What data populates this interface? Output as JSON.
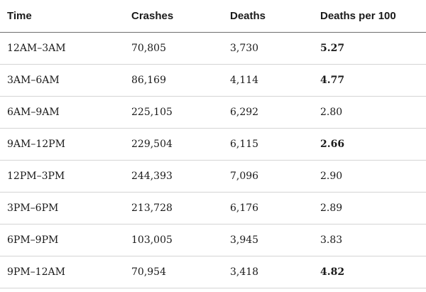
{
  "table": {
    "headers": {
      "time": "Time",
      "crashes": "Crashes",
      "deaths": "Deaths",
      "deaths_per_100": "Deaths per 100"
    },
    "rows": [
      {
        "time": "12AM–3AM",
        "crashes": "70,805",
        "deaths": "3,730",
        "rate": "5.27",
        "bold": true
      },
      {
        "time": "3AM–6AM",
        "crashes": "86,169",
        "deaths": "4,114",
        "rate": "4.77",
        "bold": true
      },
      {
        "time": "6AM–9AM",
        "crashes": "225,105",
        "deaths": "6,292",
        "rate": "2.80",
        "bold": false
      },
      {
        "time": "9AM–12PM",
        "crashes": "229,504",
        "deaths": "6,115",
        "rate": "2.66",
        "bold": true
      },
      {
        "time": "12PM–3PM",
        "crashes": "244,393",
        "deaths": "7,096",
        "rate": "2.90",
        "bold": false
      },
      {
        "time": "3PM–6PM",
        "crashes": "213,728",
        "deaths": "6,176",
        "rate": "2.89",
        "bold": false
      },
      {
        "time": "6PM–9PM",
        "crashes": "103,005",
        "deaths": "3,945",
        "rate": "3.83",
        "bold": false
      },
      {
        "time": "9PM–12AM",
        "crashes": "70,954",
        "deaths": "3,418",
        "rate": "4.82",
        "bold": true
      }
    ]
  }
}
